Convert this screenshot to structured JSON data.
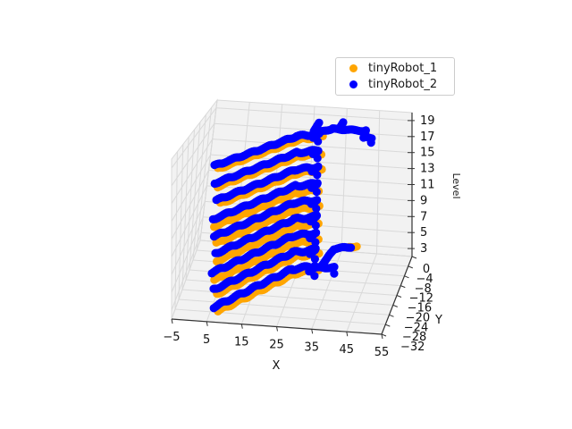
{
  "legend": {
    "position": "upper right",
    "items": [
      {
        "label": "tinyRobot_1",
        "color": "#ffa500"
      },
      {
        "label": "tinyRobot_2",
        "color": "#0000ff"
      }
    ]
  },
  "chart_data": {
    "type": "scatter",
    "projection": "3d",
    "title": "",
    "xlabel": "X",
    "ylabel": "Y",
    "zlabel": "Level",
    "xlim": [
      -5,
      55
    ],
    "ylim": [
      -32,
      0
    ],
    "zlim": [
      2,
      20
    ],
    "xticks": [
      -5,
      5,
      15,
      25,
      35,
      45,
      55
    ],
    "xtick_labels": [
      "−5",
      "5",
      "15",
      "25",
      "35",
      "45",
      "55"
    ],
    "yticks": [
      0,
      -4,
      -8,
      -12,
      -16,
      -20,
      -24,
      -28,
      -32
    ],
    "ytick_labels": [
      "0",
      "−4",
      "−8",
      "−12",
      "−16",
      "−20",
      "−24",
      "−28",
      "−32"
    ],
    "zticks": [
      3,
      5,
      7,
      9,
      11,
      13,
      15,
      17,
      19
    ],
    "ztick_labels": [
      "3",
      "5",
      "7",
      "9",
      "11",
      "13",
      "15",
      "17",
      "19"
    ],
    "grid": true,
    "pane_color": "#f2f2f2",
    "grid_color": "#d9d9d9",
    "axis_line_color": "#333333",
    "tick_label_color": "#111111",
    "marker_px": 9,
    "levels": [
      3,
      5,
      7,
      9,
      11,
      13,
      15,
      17,
      19
    ],
    "series": [
      {
        "name": "tinyRobot_1",
        "color": "#ffa500",
        "base_path": [
          [
            7.5,
            -31.5
          ],
          [
            25.5,
            -13.5
          ],
          [
            31.5,
            -11.5
          ]
        ],
        "extra_y_offset_levels": [
          7,
          9,
          11,
          13
        ],
        "extra_y_offset": -1.6,
        "level3_extension": {
          "segments": [
            [
              [
                37.5,
                -1.3
              ],
              [
                39.5,
                -0.8
              ]
            ]
          ],
          "dots": []
        }
      },
      {
        "name": "tinyRobot_2",
        "color": "#0000ff",
        "base_path": [
          [
            6,
            -30
          ],
          [
            24,
            -12
          ],
          [
            30,
            -10
          ]
        ],
        "hook": [
          [
            30,
            -10
          ],
          [
            29,
            -12.3
          ]
        ],
        "end_dot": [
          31,
          -14
        ],
        "level19_extension": {
          "segments": [
            [
              [
                28,
                -9
              ],
              [
                28,
                -4
              ]
            ],
            [
              [
                30,
                -9
              ],
              [
                33,
                -7
              ]
            ],
            [
              [
                33,
                -7
              ],
              [
                43,
                -7
              ]
            ],
            [
              [
                35,
                -7
              ],
              [
                35,
                -3
              ]
            ],
            [
              [
                43,
                -7
              ],
              [
                43.5,
                -10.5
              ]
            ],
            [
              [
                43.5,
                -10.5
              ],
              [
                46,
                -10.5
              ]
            ]
          ],
          "dots": [
            [
              46.5,
              -13
            ]
          ]
        },
        "level3_extension": {
          "segments": [
            [
              [
                29,
                -11
              ],
              [
                35.5,
                -10
              ]
            ],
            [
              [
                33.5,
                -2.5
              ],
              [
                32,
                -9
              ]
            ],
            [
              [
                33.5,
                -2.5
              ],
              [
                38,
                -1.2
              ]
            ]
          ],
          "dots": [
            [
              36.2,
              -12.5
            ]
          ]
        }
      }
    ]
  }
}
